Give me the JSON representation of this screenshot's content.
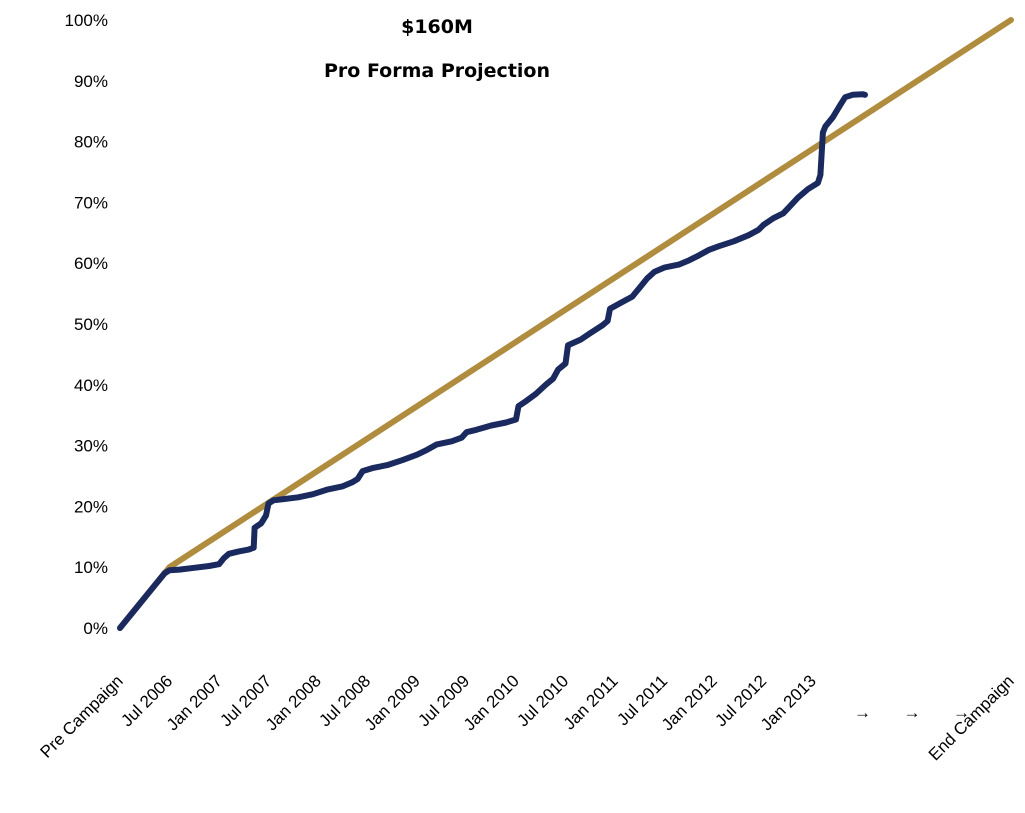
{
  "chart_data": {
    "type": "line",
    "title": "$160M",
    "subtitle": "Pro Forma Projection",
    "xlabel": "",
    "ylabel": "",
    "x_categories": [
      "Pre Campaign",
      "Jul 2006",
      "Jan 2007",
      "Jul 2007",
      "Jan 2008",
      "Jul 2008",
      "Jan 2009",
      "Jul 2009",
      "Jan 2010",
      "Jul 2010",
      "Jan 2011",
      "Jul 2011",
      "Jan 2012",
      "Jul 2012",
      "Jan 2013",
      "→",
      "→",
      "→",
      "End Campaign"
    ],
    "y_ticks": [
      "0%",
      "10%",
      "20%",
      "30%",
      "40%",
      "50%",
      "60%",
      "70%",
      "80%",
      "90%",
      "100%"
    ],
    "ylim": [
      0,
      100
    ],
    "grid": false,
    "legend": "none",
    "series": [
      {
        "key": "projection",
        "color": "#b08d3e",
        "points": [
          [
            0,
            0
          ],
          [
            1,
            10
          ],
          [
            18,
            100
          ]
        ]
      },
      {
        "key": "actual",
        "color": "#1a2a5e",
        "points": [
          [
            0,
            0
          ],
          [
            0.3,
            3
          ],
          [
            0.6,
            6
          ],
          [
            0.9,
            9
          ],
          [
            1.0,
            9.5
          ],
          [
            1.2,
            9.6
          ],
          [
            1.5,
            9.9
          ],
          [
            1.8,
            10.2
          ],
          [
            2.0,
            10.5
          ],
          [
            2.1,
            11.5
          ],
          [
            2.2,
            12.2
          ],
          [
            2.4,
            12.6
          ],
          [
            2.6,
            12.9
          ],
          [
            2.7,
            13.2
          ],
          [
            2.72,
            16.5
          ],
          [
            2.85,
            17.2
          ],
          [
            2.95,
            18.5
          ],
          [
            3.0,
            20.5
          ],
          [
            3.1,
            21.0
          ],
          [
            3.3,
            21.2
          ],
          [
            3.6,
            21.5
          ],
          [
            3.9,
            22.0
          ],
          [
            4.2,
            22.8
          ],
          [
            4.5,
            23.3
          ],
          [
            4.7,
            24.0
          ],
          [
            4.8,
            24.5
          ],
          [
            4.9,
            25.8
          ],
          [
            5.1,
            26.3
          ],
          [
            5.4,
            26.8
          ],
          [
            5.7,
            27.6
          ],
          [
            6.0,
            28.5
          ],
          [
            6.2,
            29.3
          ],
          [
            6.4,
            30.2
          ],
          [
            6.7,
            30.7
          ],
          [
            6.9,
            31.3
          ],
          [
            7.0,
            32.2
          ],
          [
            7.2,
            32.6
          ],
          [
            7.5,
            33.3
          ],
          [
            7.8,
            33.8
          ],
          [
            8.0,
            34.3
          ],
          [
            8.05,
            36.5
          ],
          [
            8.2,
            37.3
          ],
          [
            8.4,
            38.5
          ],
          [
            8.6,
            40.0
          ],
          [
            8.75,
            41.0
          ],
          [
            8.85,
            42.5
          ],
          [
            9.0,
            43.5
          ],
          [
            9.05,
            46.5
          ],
          [
            9.3,
            47.4
          ],
          [
            9.5,
            48.5
          ],
          [
            9.75,
            49.8
          ],
          [
            9.85,
            50.5
          ],
          [
            9.9,
            52.5
          ],
          [
            10.1,
            53.4
          ],
          [
            10.35,
            54.5
          ],
          [
            10.5,
            56.0
          ],
          [
            10.65,
            57.5
          ],
          [
            10.8,
            58.6
          ],
          [
            11.0,
            59.3
          ],
          [
            11.3,
            59.8
          ],
          [
            11.5,
            60.5
          ],
          [
            11.7,
            61.3
          ],
          [
            11.9,
            62.2
          ],
          [
            12.1,
            62.8
          ],
          [
            12.4,
            63.6
          ],
          [
            12.7,
            64.6
          ],
          [
            12.9,
            65.5
          ],
          [
            13.0,
            66.3
          ],
          [
            13.2,
            67.4
          ],
          [
            13.4,
            68.2
          ],
          [
            13.55,
            69.5
          ],
          [
            13.7,
            70.8
          ],
          [
            13.9,
            72.2
          ],
          [
            14.1,
            73.2
          ],
          [
            14.15,
            74.5
          ],
          [
            14.2,
            81.5
          ],
          [
            14.25,
            82.5
          ],
          [
            14.4,
            84.0
          ],
          [
            14.55,
            86.0
          ],
          [
            14.65,
            87.3
          ],
          [
            14.8,
            87.7
          ],
          [
            15.0,
            87.8
          ],
          [
            15.05,
            87.7
          ]
        ]
      }
    ]
  }
}
